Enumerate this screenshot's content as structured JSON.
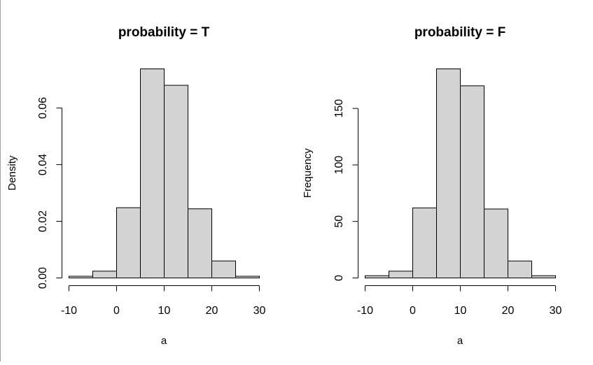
{
  "chart_data": [
    {
      "type": "bar",
      "title": "probability = T",
      "xlabel": "a",
      "ylabel": "Density",
      "breaks": [
        -10,
        -5,
        0,
        5,
        10,
        15,
        20,
        25,
        30
      ],
      "values": [
        0.0006,
        0.0024,
        0.0248,
        0.0738,
        0.068,
        0.0244,
        0.006,
        0.0006
      ],
      "xlim": [
        -10,
        30
      ],
      "ylim": [
        0,
        0.0738
      ],
      "xticks": [
        -10,
        0,
        10,
        20,
        30
      ],
      "yticks": [
        0,
        0.02,
        0.04,
        0.06
      ],
      "xtick_labels": [
        "-10",
        "0",
        "10",
        "20",
        "30"
      ],
      "ytick_labels": [
        "0.00",
        "0.02",
        "0.04",
        "0.06"
      ],
      "grid": false
    },
    {
      "type": "bar",
      "title": "probability = F",
      "xlabel": "a",
      "ylabel": "Frequency",
      "breaks": [
        -10,
        -5,
        0,
        5,
        10,
        15,
        20,
        25,
        30
      ],
      "values": [
        2,
        6,
        62,
        185,
        170,
        61,
        15,
        2
      ],
      "xlim": [
        -10,
        30
      ],
      "ylim": [
        0,
        185
      ],
      "xticks": [
        -10,
        0,
        10,
        20,
        30
      ],
      "yticks": [
        0,
        50,
        100,
        150
      ],
      "xtick_labels": [
        "-10",
        "0",
        "10",
        "20",
        "30"
      ],
      "ytick_labels": [
        "0",
        "50",
        "100",
        "150"
      ],
      "grid": false
    }
  ]
}
